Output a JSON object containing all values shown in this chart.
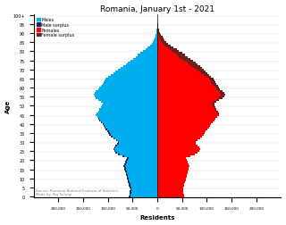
{
  "title": "Romania, January 1st - 2021",
  "xlabel": "Residents",
  "ylabel": "Age",
  "source": "Source: Romania National Institute of Statistics\nMade by: Raj Tullurgi",
  "xlim": 250000,
  "colors": {
    "male": "#00AEEF",
    "male_surplus": "#1A2A5E",
    "female": "#FF0000",
    "female_surplus": "#6B2020"
  },
  "male_by_age": [
    57000,
    56500,
    56000,
    55500,
    55000,
    56000,
    57000,
    58000,
    59000,
    60000,
    61000,
    62000,
    63000,
    64000,
    65000,
    66000,
    67000,
    68000,
    67000,
    65000,
    63000,
    61000,
    70000,
    79000,
    84000,
    87000,
    89000,
    87000,
    84000,
    81000,
    80000,
    83000,
    88000,
    93000,
    97000,
    99000,
    101000,
    104000,
    107000,
    109000,
    111000,
    114000,
    117000,
    119000,
    121000,
    124000,
    122000,
    119000,
    117000,
    114000,
    112000,
    111000,
    114000,
    119000,
    124000,
    127000,
    129000,
    127000,
    124000,
    119000,
    117000,
    114000,
    111000,
    109000,
    107000,
    104000,
    99000,
    94000,
    89000,
    84000,
    79000,
    74000,
    69000,
    64000,
    59000,
    54000,
    49000,
    44000,
    39000,
    34000,
    29000,
    24000,
    19000,
    14500,
    11500,
    9500,
    7500,
    5500,
    4000,
    2800,
    1900,
    1400,
    950,
    650,
    450,
    300,
    200,
    130,
    80,
    50,
    30
  ],
  "female_by_age": [
    54000,
    53500,
    53000,
    52500,
    52000,
    53000,
    54000,
    55000,
    56000,
    57000,
    58000,
    59000,
    60000,
    61000,
    62000,
    63000,
    64000,
    65000,
    64000,
    62000,
    60000,
    58500,
    67000,
    76000,
    81000,
    84000,
    86000,
    84000,
    81000,
    78000,
    78000,
    81000,
    86000,
    91000,
    94000,
    96000,
    98000,
    101000,
    104000,
    106000,
    109000,
    112000,
    115000,
    118000,
    121000,
    125000,
    124000,
    122000,
    120000,
    118000,
    116000,
    115000,
    119000,
    125000,
    131000,
    135000,
    137000,
    135000,
    132000,
    127000,
    125000,
    122000,
    119000,
    117000,
    115000,
    113000,
    109000,
    105000,
    101000,
    97000,
    94000,
    91000,
    87000,
    82000,
    77000,
    72000,
    67000,
    62000,
    56000,
    50000,
    44000,
    39000,
    33000,
    27000,
    22000,
    18000,
    15000,
    12500,
    10000,
    7500,
    5500,
    4200,
    3100,
    2200,
    1600,
    1200,
    880,
    630,
    440,
    290,
    190
  ]
}
